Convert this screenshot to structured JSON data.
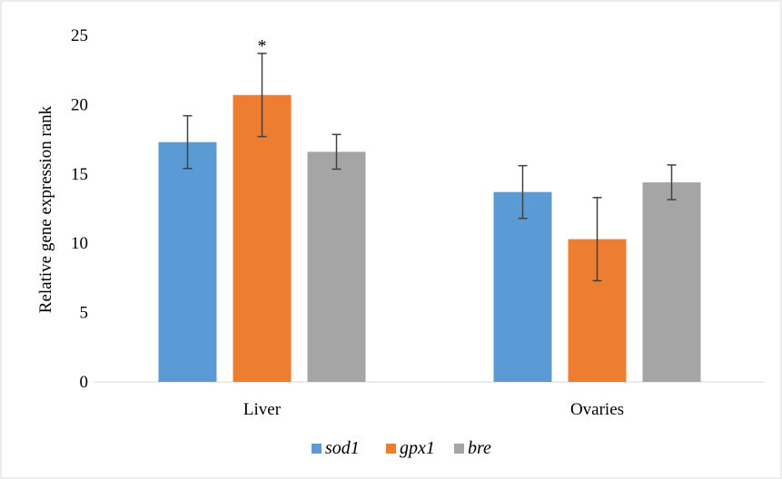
{
  "chart_data": {
    "type": "bar",
    "title": "",
    "xlabel": "",
    "ylabel": "Relative gene expression rank",
    "ylim": [
      0,
      25
    ],
    "yticks": [
      0,
      5,
      10,
      15,
      20,
      25
    ],
    "grid": false,
    "legend_position": "bottom",
    "categories": [
      "Liver",
      "Ovaries"
    ],
    "series": [
      {
        "name": "sod1",
        "color": "#5B9BD5",
        "values": [
          17.3,
          13.7
        ],
        "errors": [
          1.9,
          1.9
        ]
      },
      {
        "name": "gpx1",
        "color": "#ED7D31",
        "values": [
          20.7,
          10.3
        ],
        "errors": [
          3.0,
          3.0
        ]
      },
      {
        "name": "bre",
        "color": "#A5A5A5",
        "values": [
          16.6,
          14.4
        ],
        "errors": [
          1.25,
          1.25
        ]
      }
    ],
    "annotations": [
      {
        "text": "*",
        "category": "Liver",
        "series": "gpx1"
      }
    ]
  }
}
